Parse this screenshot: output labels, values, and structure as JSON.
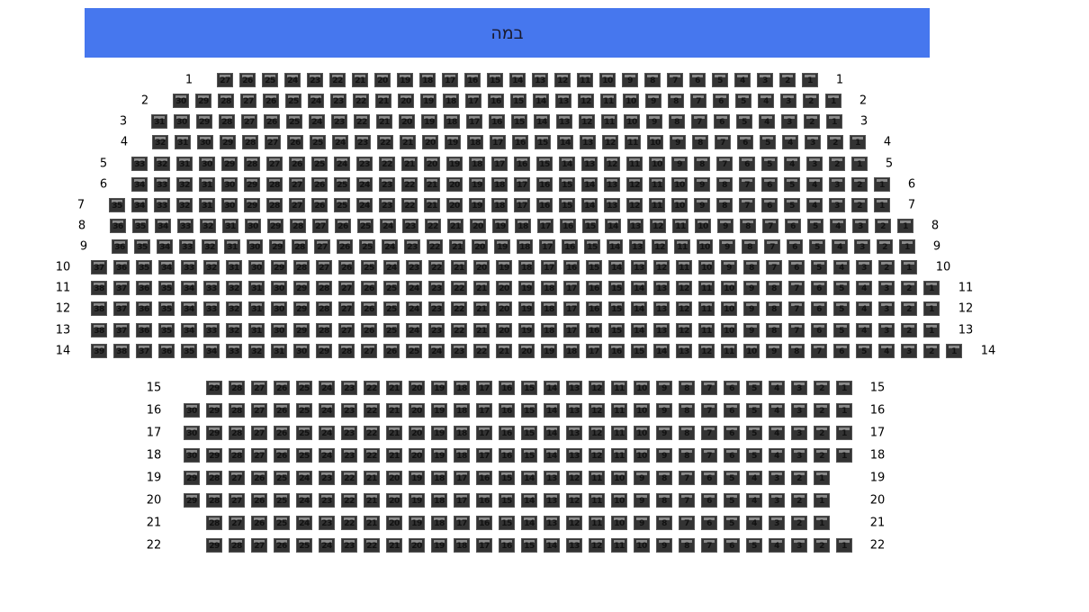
{
  "stage": {
    "label": "במה",
    "color": "#4677EE"
  },
  "seat_colors": {
    "seat": "#333333",
    "seat_back": "#8a8a8a"
  },
  "numbering": "right-to-left",
  "rows": [
    {
      "label": "1",
      "seats": 27
    },
    {
      "label": "2",
      "seats": 30
    },
    {
      "label": "3",
      "seats": 31
    },
    {
      "label": "4",
      "seats": 32
    },
    {
      "label": "5",
      "seats": 33
    },
    {
      "label": "6",
      "seats": 34
    },
    {
      "label": "7",
      "seats": 35
    },
    {
      "label": "8",
      "seats": 36
    },
    {
      "label": "9",
      "seats": 36
    },
    {
      "label": "10",
      "seats": 37
    },
    {
      "label": "11",
      "seats": 38
    },
    {
      "label": "12",
      "seats": 38
    },
    {
      "label": "13",
      "seats": 38
    },
    {
      "label": "14",
      "seats": 39
    },
    {
      "label": "15",
      "seats": 29
    },
    {
      "label": "16",
      "seats": 30
    },
    {
      "label": "17",
      "seats": 30
    },
    {
      "label": "18",
      "seats": 30
    },
    {
      "label": "19",
      "seats": 29
    },
    {
      "label": "20",
      "seats": 29
    },
    {
      "label": "21",
      "seats": 28
    },
    {
      "label": "22",
      "seats": 29
    }
  ]
}
